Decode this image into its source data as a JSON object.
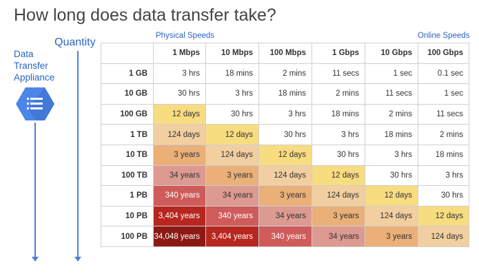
{
  "title": "How long does data transfer take?",
  "quantity_label": "Quantity",
  "appliance_label_lines": [
    "Data",
    "Transfer",
    "Appliance"
  ],
  "icons": {
    "appliance": "storage-list-icon"
  },
  "physical_speeds_label": "Physical Speeds",
  "online_speeds_label": "Online Speeds",
  "columns": [
    "1 Mbps",
    "10 Mbps",
    "100 Mbps",
    "1 Gbps",
    "10 Gbps",
    "100 Gbps"
  ],
  "rows": [
    {
      "label": "1 GB",
      "cells": [
        {
          "text": "3 hrs",
          "color": "#ffffff"
        },
        {
          "text": "18 mins",
          "color": "#ffffff"
        },
        {
          "text": "2 mins",
          "color": "#ffffff"
        },
        {
          "text": "11 secs",
          "color": "#ffffff"
        },
        {
          "text": "1 sec",
          "color": "#ffffff"
        },
        {
          "text": "0.1 sec",
          "color": "#ffffff"
        }
      ]
    },
    {
      "label": "10 GB",
      "cells": [
        {
          "text": "30 hrs",
          "color": "#ffffff"
        },
        {
          "text": "3 hrs",
          "color": "#ffffff"
        },
        {
          "text": "18 mins",
          "color": "#ffffff"
        },
        {
          "text": "2 mins",
          "color": "#ffffff"
        },
        {
          "text": "11 secs",
          "color": "#ffffff"
        },
        {
          "text": "1 sec",
          "color": "#ffffff"
        }
      ]
    },
    {
      "label": "100 GB",
      "cells": [
        {
          "text": "12 days",
          "color": "#f8dc80"
        },
        {
          "text": "30 hrs",
          "color": "#ffffff"
        },
        {
          "text": "3 hrs",
          "color": "#ffffff"
        },
        {
          "text": "18 mins",
          "color": "#ffffff"
        },
        {
          "text": "2 mins",
          "color": "#ffffff"
        },
        {
          "text": "11 secs",
          "color": "#ffffff"
        }
      ]
    },
    {
      "label": "1 TB",
      "cells": [
        {
          "text": "124 days",
          "color": "#f2cfa0"
        },
        {
          "text": "12 days",
          "color": "#f8dc80"
        },
        {
          "text": "30 hrs",
          "color": "#ffffff"
        },
        {
          "text": "3 hrs",
          "color": "#ffffff"
        },
        {
          "text": "18 mins",
          "color": "#ffffff"
        },
        {
          "text": "2 mins",
          "color": "#ffffff"
        }
      ]
    },
    {
      "label": "10 TB",
      "cells": [
        {
          "text": "3 years",
          "color": "#eab078"
        },
        {
          "text": "124 days",
          "color": "#f2cfa0"
        },
        {
          "text": "12 days",
          "color": "#f8dc80"
        },
        {
          "text": "30 hrs",
          "color": "#ffffff"
        },
        {
          "text": "3 hrs",
          "color": "#ffffff"
        },
        {
          "text": "18 mins",
          "color": "#ffffff"
        }
      ]
    },
    {
      "label": "100 TB",
      "cells": [
        {
          "text": "34 years",
          "color": "#dc9a90"
        },
        {
          "text": "3 years",
          "color": "#eab078"
        },
        {
          "text": "124 days",
          "color": "#f2cfa0"
        },
        {
          "text": "12 days",
          "color": "#f8dc80"
        },
        {
          "text": "30 hrs",
          "color": "#ffffff"
        },
        {
          "text": "3 hrs",
          "color": "#ffffff"
        }
      ]
    },
    {
      "label": "1 PB",
      "cells": [
        {
          "text": "340 years",
          "color": "#cf5b5b"
        },
        {
          "text": "34 years",
          "color": "#dc9a90"
        },
        {
          "text": "3 years",
          "color": "#eab078"
        },
        {
          "text": "124 days",
          "color": "#f2cfa0"
        },
        {
          "text": "12 days",
          "color": "#f8dc80"
        },
        {
          "text": "30 hrs",
          "color": "#ffffff"
        }
      ]
    },
    {
      "label": "10 PB",
      "cells": [
        {
          "text": "3,404 years",
          "color": "#b7271f"
        },
        {
          "text": "340 years",
          "color": "#cf5b5b"
        },
        {
          "text": "34 years",
          "color": "#dc9a90"
        },
        {
          "text": "3 years",
          "color": "#eab078"
        },
        {
          "text": "124 days",
          "color": "#f2cfa0"
        },
        {
          "text": "12 days",
          "color": "#f8dc80"
        }
      ]
    },
    {
      "label": "100 PB",
      "cells": [
        {
          "text": "34,048 years",
          "color": "#8b1a14"
        },
        {
          "text": "3,404 years",
          "color": "#b7271f"
        },
        {
          "text": "340 years",
          "color": "#cf5b5b"
        },
        {
          "text": "34 years",
          "color": "#dc9a90"
        },
        {
          "text": "3 years",
          "color": "#eab078"
        },
        {
          "text": "124 days",
          "color": "#f2cfa0"
        }
      ]
    }
  ]
}
